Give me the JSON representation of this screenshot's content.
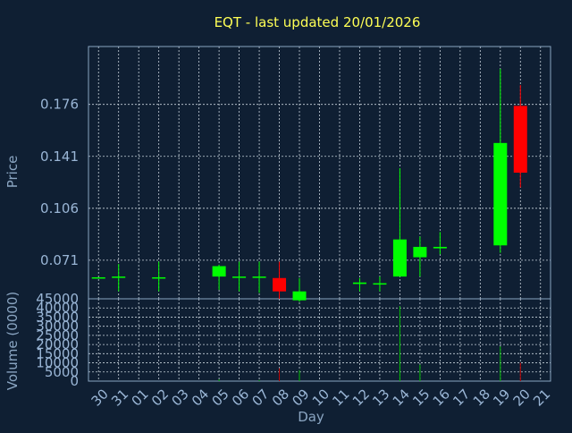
{
  "chart_data": {
    "type": "candlestick",
    "title": "EQT - last updated 20/01/2026",
    "xlabel": "Day",
    "ylabel_price": "Price",
    "ylabel_volume": "Volume (0000)",
    "x_ticks": [
      "30",
      "31",
      "01",
      "02",
      "03",
      "04",
      "05",
      "06",
      "07",
      "08",
      "09",
      "10",
      "11",
      "12",
      "13",
      "14",
      "15",
      "16",
      "17",
      "18",
      "19",
      "20",
      "21"
    ],
    "price_ticks": [
      0.071,
      0.106,
      0.141,
      0.176
    ],
    "price_tick_labels": [
      "0.071",
      "0.106",
      "0.141",
      "0.176"
    ],
    "price_range": [
      0.045,
      0.215
    ],
    "volume_ticks": [
      0,
      5000,
      10000,
      15000,
      20000,
      25000,
      30000,
      35000,
      40000,
      45000
    ],
    "volume_tick_labels": [
      "0",
      "5000",
      "10000",
      "15000",
      "20000",
      "25000",
      "30000",
      "35000",
      "40000",
      "45000"
    ],
    "volume_range": [
      0,
      45000
    ],
    "candles": [
      {
        "day": "30",
        "open": 0.0595,
        "high": 0.0595,
        "low": 0.0595,
        "close": 0.0595,
        "volume": 0
      },
      {
        "day": "31",
        "open": 0.0595,
        "high": 0.0685,
        "low": 0.05,
        "close": 0.06,
        "volume": 0
      },
      {
        "day": "02",
        "open": 0.0595,
        "high": 0.07,
        "low": 0.05,
        "close": 0.0595,
        "volume": 0
      },
      {
        "day": "05",
        "open": 0.06,
        "high": 0.068,
        "low": 0.051,
        "close": 0.067,
        "volume": 1000
      },
      {
        "day": "06",
        "open": 0.0595,
        "high": 0.07,
        "low": 0.05,
        "close": 0.06,
        "volume": 0
      },
      {
        "day": "07",
        "open": 0.0595,
        "high": 0.07,
        "low": 0.049,
        "close": 0.06,
        "volume": 600
      },
      {
        "day": "08",
        "open": 0.059,
        "high": 0.07,
        "low": 0.045,
        "close": 0.05,
        "volume": 7000
      },
      {
        "day": "09",
        "open": 0.044,
        "high": 0.059,
        "low": 0.043,
        "close": 0.05,
        "volume": 6000
      },
      {
        "day": "12",
        "open": 0.055,
        "high": 0.059,
        "low": 0.05,
        "close": 0.056,
        "volume": 0
      },
      {
        "day": "13",
        "open": 0.055,
        "high": 0.06,
        "low": 0.05,
        "close": 0.0555,
        "volume": 0
      },
      {
        "day": "14",
        "open": 0.06,
        "high": 0.133,
        "low": 0.06,
        "close": 0.085,
        "volume": 41000
      },
      {
        "day": "15",
        "open": 0.073,
        "high": 0.087,
        "low": 0.06,
        "close": 0.08,
        "volume": 9000
      },
      {
        "day": "16",
        "open": 0.079,
        "high": 0.09,
        "low": 0.075,
        "close": 0.08,
        "volume": 0
      },
      {
        "day": "19",
        "open": 0.081,
        "high": 0.2,
        "low": 0.076,
        "close": 0.15,
        "volume": 19000
      },
      {
        "day": "20",
        "open": 0.175,
        "high": 0.189,
        "low": 0.12,
        "close": 0.13,
        "volume": 10000
      }
    ]
  },
  "colors": {
    "background": "#0f1f33",
    "axis": "#8aa5c2",
    "grid": "#c8d2dc",
    "title": "#ffff55",
    "tick_text": "#9ab6d6",
    "label_text": "#8aa5c2",
    "up": "#00ff00",
    "down": "#ff0000",
    "volume_up": "#00bb00",
    "volume_down": "#bb0000"
  }
}
